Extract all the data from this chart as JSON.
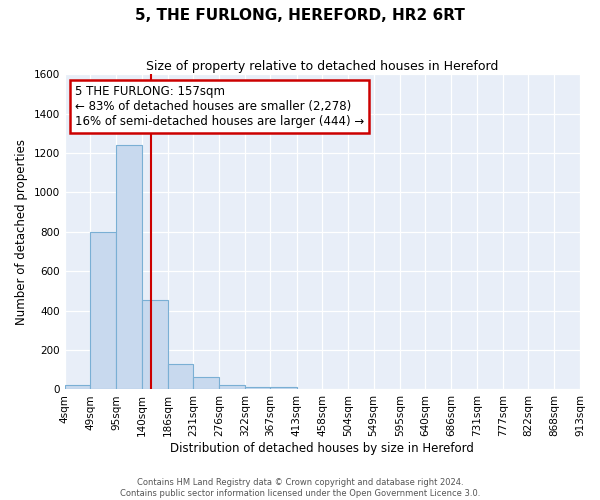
{
  "title": "5, THE FURLONG, HEREFORD, HR2 6RT",
  "subtitle": "Size of property relative to detached houses in Hereford",
  "xlabel": "Distribution of detached houses by size in Hereford",
  "ylabel": "Number of detached properties",
  "bar_color": "#c8d9ee",
  "bar_edge_color": "#7aafd4",
  "background_color": "#e8eef8",
  "grid_color": "white",
  "bin_edges": [
    4,
    49,
    95,
    140,
    186,
    231,
    276,
    322,
    367,
    413,
    458,
    504,
    549,
    595,
    640,
    686,
    731,
    777,
    822,
    868,
    913
  ],
  "bar_heights": [
    25,
    800,
    1240,
    455,
    130,
    65,
    25,
    15,
    15,
    0,
    0,
    0,
    0,
    0,
    0,
    0,
    0,
    0,
    0,
    0
  ],
  "x_tick_labels": [
    "4sqm",
    "49sqm",
    "95sqm",
    "140sqm",
    "186sqm",
    "231sqm",
    "276sqm",
    "322sqm",
    "367sqm",
    "413sqm",
    "458sqm",
    "504sqm",
    "549sqm",
    "595sqm",
    "640sqm",
    "686sqm",
    "731sqm",
    "777sqm",
    "822sqm",
    "868sqm",
    "913sqm"
  ],
  "ylim": [
    0,
    1600
  ],
  "yticks": [
    0,
    200,
    400,
    600,
    800,
    1000,
    1200,
    1400,
    1600
  ],
  "red_line_x": 157,
  "annotation_line1": "5 THE FURLONG: 157sqm",
  "annotation_line2": "← 83% of detached houses are smaller (2,278)",
  "annotation_line3": "16% of semi-detached houses are larger (444) →",
  "annotation_box_color": "#cc0000",
  "footer_line1": "Contains HM Land Registry data © Crown copyright and database right 2024.",
  "footer_line2": "Contains public sector information licensed under the Open Government Licence 3.0.",
  "title_fontsize": 11,
  "subtitle_fontsize": 9,
  "annotation_fontsize": 8.5,
  "axis_label_fontsize": 8.5,
  "tick_fontsize": 7.5,
  "footer_fontsize": 6
}
